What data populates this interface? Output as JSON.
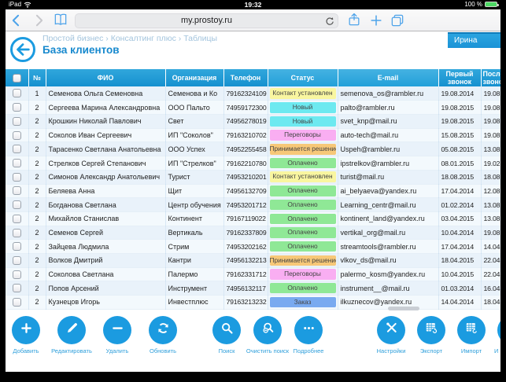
{
  "accent": "#1b9be0",
  "status_bar": {
    "device": "iPad",
    "time": "19:32",
    "battery_percent": "100 %"
  },
  "browser": {
    "url": "my.prostoy.ru"
  },
  "page": {
    "breadcrumb": [
      "Простой бизнес",
      "Консалтинг плюс",
      "Таблицы"
    ],
    "breadcrumb_separator": "›",
    "title": "База клиентов",
    "user": "Ирина"
  },
  "table": {
    "columns": [
      "№",
      "ФИО",
      "Организация",
      "Телефон",
      "Статус",
      "E-mail",
      "Первый звонок",
      "Последний звонок"
    ],
    "status_colors": {
      "yellow": "#f9f6a0",
      "cyan": "#6de9f0",
      "pink": "#f9aef2",
      "orange": "#f7c878",
      "green": "#8fe896",
      "blue": "#79aaf0"
    },
    "rows": [
      {
        "n": "1",
        "fio": "Семенова Ольга Семеновна",
        "org": "Семенова и Ко",
        "phone": "79162324109",
        "status": "Контакт установлен",
        "color": "yellow",
        "email": "semenova_os@rambler.ru",
        "first": "19.08.2014",
        "last": "19.08"
      },
      {
        "n": "2",
        "fio": "Сергеева Марина Александровна",
        "org": "ООО Пальто",
        "phone": "74959172300",
        "status": "Новый",
        "color": "cyan",
        "email": "palto@rambler.ru",
        "first": "19.08.2015",
        "last": "19.08"
      },
      {
        "n": "2",
        "fio": "Крошкин Николай Павлович",
        "org": "Свет",
        "phone": "74956278019",
        "status": "Новый",
        "color": "cyan",
        "email": "svet_knp@mail.ru",
        "first": "19.08.2015",
        "last": "19.08"
      },
      {
        "n": "2",
        "fio": "Соколов Иван Сергеевич",
        "org": "ИП \"Соколов\"",
        "phone": "79163210702",
        "status": "Переговоры",
        "color": "pink",
        "email": "auto-tech@mail.ru",
        "first": "15.08.2015",
        "last": "19.08"
      },
      {
        "n": "2",
        "fio": "Тарасенко Светлана Анатольевна",
        "org": "ООО Успех",
        "phone": "74952255458",
        "status": "Принимается решение",
        "color": "orange",
        "email": "Uspeh@rambler.ru",
        "first": "05.08.2015",
        "last": "13.08"
      },
      {
        "n": "2",
        "fio": "Стрелков Сергей Степанович",
        "org": "ИП \"Стрелков\"",
        "phone": "79162210780",
        "status": "Оплачено",
        "color": "green",
        "email": "ipstrelkov@rambler.ru",
        "first": "08.01.2015",
        "last": "19.02"
      },
      {
        "n": "2",
        "fio": "Симонов Александр Анатольевич",
        "org": "Турист",
        "phone": "74953210201",
        "status": "Контакт установлен",
        "color": "yellow",
        "email": "turist@mail.ru",
        "first": "18.08.2015",
        "last": "18.08"
      },
      {
        "n": "2",
        "fio": "Беляева Анна",
        "org": "Щит",
        "phone": "74956132709",
        "status": "Оплачено",
        "color": "green",
        "email": "ai_belyaeva@yandex.ru",
        "first": "17.04.2014",
        "last": "12.08"
      },
      {
        "n": "2",
        "fio": "Богданова Светлана",
        "org": "Центр обучения",
        "phone": "74953201712",
        "status": "Оплачено",
        "color": "green",
        "email": "Learning_centr@mail.ru",
        "first": "01.02.2014",
        "last": "13.08"
      },
      {
        "n": "2",
        "fio": "Михайлов Станислав",
        "org": "Континент",
        "phone": "79167119022",
        "status": "Оплачено",
        "color": "green",
        "email": "kontinent_land@yandex.ru",
        "first": "03.04.2015",
        "last": "13.08"
      },
      {
        "n": "2",
        "fio": "Семенов Сергей",
        "org": "Вертикаль",
        "phone": "79162337809",
        "status": "Оплачено",
        "color": "green",
        "email": "vertikal_org@mail.ru",
        "first": "10.04.2014",
        "last": "19.08"
      },
      {
        "n": "2",
        "fio": "Зайцева Людмила",
        "org": "Стрим",
        "phone": "74953202162",
        "status": "Оплачено",
        "color": "green",
        "email": "streamtools@rambler.ru",
        "first": "17.04.2014",
        "last": "14.04"
      },
      {
        "n": "2",
        "fio": "Волков Дмитрий",
        "org": "Кантри",
        "phone": "74956132213",
        "status": "Принимается решение",
        "color": "orange",
        "email": "vlkov_ds@mail.ru",
        "first": "18.04.2015",
        "last": "22.04"
      },
      {
        "n": "2",
        "fio": "Соколова Светлана",
        "org": "Палермо",
        "phone": "79162331712",
        "status": "Переговоры",
        "color": "pink",
        "email": "palermo_kosm@yandex.ru",
        "first": "10.04.2015",
        "last": "22.04"
      },
      {
        "n": "2",
        "fio": "Попов Арсений",
        "org": "Инструмент",
        "phone": "74956132117",
        "status": "Оплачено",
        "color": "green",
        "email": "instrument__@mail.ru",
        "first": "01.03.2014",
        "last": "16.04"
      },
      {
        "n": "2",
        "fio": "Кузнецов Игорь",
        "org": "Инвестплюс",
        "phone": "79163213232",
        "status": "Заказ",
        "color": "blue",
        "email": "ilkuznecov@yandex.ru",
        "first": "14.04.2014",
        "last": "18.04"
      }
    ]
  },
  "toolbar": {
    "groups": [
      {
        "buttons": [
          {
            "label": "Добавить",
            "icon": "plus-icon"
          },
          {
            "label": "Редактировать",
            "icon": "pencil-icon"
          },
          {
            "label": "Удалить",
            "icon": "minus-icon"
          },
          {
            "label": "Обновить",
            "icon": "refresh-icon"
          }
        ]
      },
      {
        "buttons": [
          {
            "label": "Поиск",
            "icon": "search-icon"
          },
          {
            "label": "Очистить поиск",
            "icon": "clear-search-icon"
          },
          {
            "label": "Подробнее",
            "icon": "more-icon"
          }
        ]
      },
      {
        "buttons": [
          {
            "label": "Настройки",
            "icon": "settings-icon"
          },
          {
            "label": "Экспорт",
            "icon": "export-icon"
          },
          {
            "label": "Импорт",
            "icon": "import-icon"
          },
          {
            "label": "И",
            "icon": "circle-icon"
          }
        ]
      }
    ]
  }
}
